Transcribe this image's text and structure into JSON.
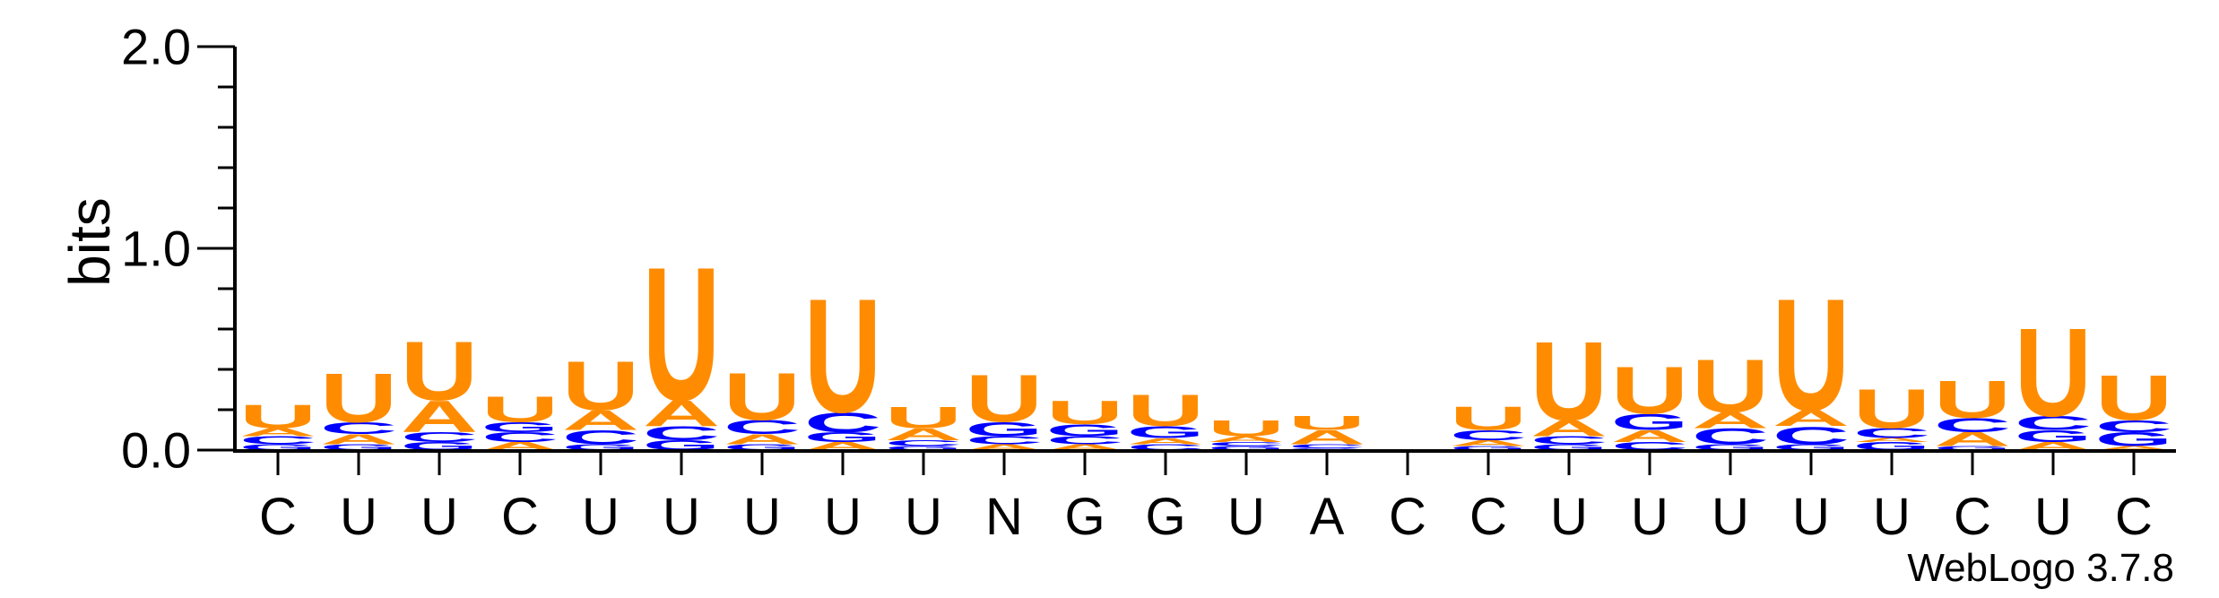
{
  "chart_data": {
    "type": "sequence-logo",
    "ylabel": "bits",
    "ylim": [
      0,
      2.0
    ],
    "yticks": [
      {
        "value": 0,
        "label": "0.0"
      },
      {
        "value": 1,
        "label": "1.0"
      },
      {
        "value": 2,
        "label": "2.0"
      }
    ],
    "colors": {
      "U": "#ff8c00",
      "A": "#ff8c00",
      "C": "#0000ff",
      "G": "#0000ff"
    },
    "positions": [
      {
        "label": "C",
        "stack": [
          [
            "G",
            0.03
          ],
          [
            "C",
            0.04
          ],
          [
            "A",
            0.04
          ],
          [
            "U",
            0.12
          ]
        ]
      },
      {
        "label": "U",
        "stack": [
          [
            "G",
            0.03
          ],
          [
            "A",
            0.05
          ],
          [
            "C",
            0.06
          ],
          [
            "U",
            0.25
          ]
        ]
      },
      {
        "label": "U",
        "stack": [
          [
            "G",
            0.04
          ],
          [
            "C",
            0.05
          ],
          [
            "A",
            0.16
          ],
          [
            "U",
            0.3
          ]
        ]
      },
      {
        "label": "C",
        "stack": [
          [
            "A",
            0.04
          ],
          [
            "C",
            0.05
          ],
          [
            "G",
            0.05
          ],
          [
            "U",
            0.13
          ]
        ]
      },
      {
        "label": "U",
        "stack": [
          [
            "G",
            0.03
          ],
          [
            "C",
            0.07
          ],
          [
            "A",
            0.1
          ],
          [
            "U",
            0.25
          ]
        ]
      },
      {
        "label": "U",
        "stack": [
          [
            "G",
            0.05
          ],
          [
            "C",
            0.07
          ],
          [
            "A",
            0.13
          ],
          [
            "U",
            0.68
          ]
        ]
      },
      {
        "label": "U",
        "stack": [
          [
            "G",
            0.03
          ],
          [
            "A",
            0.05
          ],
          [
            "C",
            0.07
          ],
          [
            "U",
            0.24
          ]
        ]
      },
      {
        "label": "U",
        "stack": [
          [
            "A",
            0.04
          ],
          [
            "G",
            0.05
          ],
          [
            "C",
            0.1
          ],
          [
            "U",
            0.58
          ]
        ]
      },
      {
        "label": "U",
        "stack": [
          [
            "G",
            0.02
          ],
          [
            "C",
            0.03
          ],
          [
            "A",
            0.06
          ],
          [
            "U",
            0.11
          ]
        ]
      },
      {
        "label": "N",
        "stack": [
          [
            "A",
            0.03
          ],
          [
            "C",
            0.04
          ],
          [
            "G",
            0.07
          ],
          [
            "U",
            0.24
          ]
        ]
      },
      {
        "label": "G",
        "stack": [
          [
            "A",
            0.03
          ],
          [
            "C",
            0.04
          ],
          [
            "G",
            0.06
          ],
          [
            "U",
            0.12
          ]
        ]
      },
      {
        "label": "G",
        "stack": [
          [
            "C",
            0.03
          ],
          [
            "A",
            0.03
          ],
          [
            "G",
            0.06
          ],
          [
            "U",
            0.16
          ]
        ]
      },
      {
        "label": "U",
        "stack": [
          [
            "G",
            0.02
          ],
          [
            "C",
            0.02
          ],
          [
            "A",
            0.03
          ],
          [
            "U",
            0.08
          ]
        ]
      },
      {
        "label": "A",
        "stack": [
          [
            "G",
            0.01
          ],
          [
            "C",
            0.02
          ],
          [
            "A",
            0.07
          ],
          [
            "U",
            0.07
          ]
        ]
      },
      {
        "label": "C",
        "stack": []
      },
      {
        "label": "C",
        "stack": [
          [
            "G",
            0.02
          ],
          [
            "A",
            0.03
          ],
          [
            "C",
            0.05
          ],
          [
            "U",
            0.12
          ]
        ]
      },
      {
        "label": "U",
        "stack": [
          [
            "G",
            0.03
          ],
          [
            "C",
            0.04
          ],
          [
            "A",
            0.08
          ],
          [
            "U",
            0.4
          ]
        ]
      },
      {
        "label": "U",
        "stack": [
          [
            "C",
            0.04
          ],
          [
            "A",
            0.06
          ],
          [
            "G",
            0.08
          ],
          [
            "U",
            0.24
          ]
        ]
      },
      {
        "label": "U",
        "stack": [
          [
            "G",
            0.03
          ],
          [
            "C",
            0.08
          ],
          [
            "A",
            0.08
          ],
          [
            "U",
            0.27
          ]
        ]
      },
      {
        "label": "U",
        "stack": [
          [
            "G",
            0.03
          ],
          [
            "C",
            0.09
          ],
          [
            "A",
            0.08
          ],
          [
            "U",
            0.57
          ]
        ]
      },
      {
        "label": "U",
        "stack": [
          [
            "G",
            0.04
          ],
          [
            "A",
            0.02
          ],
          [
            "C",
            0.05
          ],
          [
            "U",
            0.2
          ]
        ]
      },
      {
        "label": "C",
        "stack": [
          [
            "G",
            0.02
          ],
          [
            "A",
            0.07
          ],
          [
            "C",
            0.07
          ],
          [
            "U",
            0.19
          ]
        ]
      },
      {
        "label": "U",
        "stack": [
          [
            "A",
            0.04
          ],
          [
            "G",
            0.06
          ],
          [
            "C",
            0.07
          ],
          [
            "U",
            0.45
          ]
        ]
      },
      {
        "label": "C",
        "stack": [
          [
            "A",
            0.02
          ],
          [
            "G",
            0.07
          ],
          [
            "C",
            0.06
          ],
          [
            "U",
            0.23
          ]
        ]
      }
    ]
  },
  "footer": {
    "version": "WebLogo 3.7.8"
  }
}
